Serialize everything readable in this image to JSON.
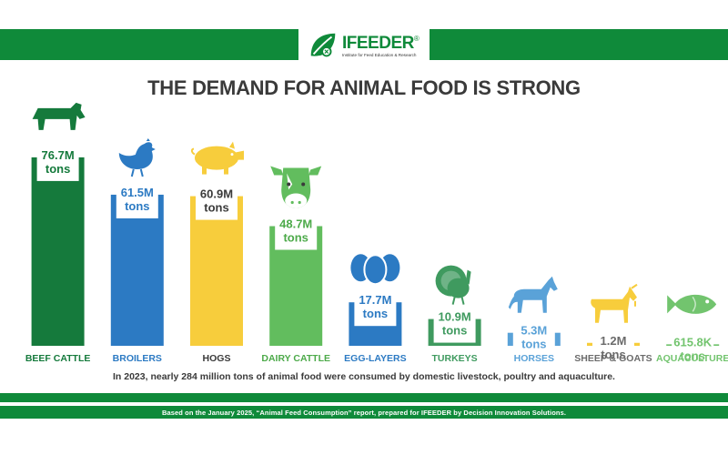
{
  "brand": {
    "name": "IFEEDER",
    "registered": "®",
    "tagline": "Institute for Feed Education & Research"
  },
  "title": "THE DEMAND FOR ANIMAL FOOD IS STRONG",
  "caption": "In 2023, nearly 284 million tons of animal food were consumed by domestic livestock, poultry and aquaculture.",
  "footer": "Based on the January 2025, “Animal Feed Consumption” report, prepared for IFEEDER by Decision Innovation Solutions.",
  "colors": {
    "brand_green": "#0f8a3a",
    "text_dark": "#3a3a3a"
  },
  "chart_data": {
    "type": "bar",
    "unit": "million tons",
    "categories": [
      "BEEF CATTLE",
      "BROILERS",
      "HOGS",
      "DAIRY CATTLE",
      "EGG-LAYERS",
      "TURKEYS",
      "HORSES",
      "SHEEP & GOATS",
      "AQUACULTURE"
    ],
    "values": [
      76.7,
      61.5,
      60.9,
      48.7,
      17.7,
      10.9,
      5.3,
      1.2,
      0.6158
    ],
    "value_labels": [
      "76.7M",
      "61.5M",
      "60.9M",
      "48.7M",
      "17.7M",
      "10.9M",
      "5.3M",
      "1.2M",
      "615.8K"
    ],
    "value_unit_label": "tons",
    "colors": [
      "#157a3c",
      "#2c7ac3",
      "#f7cd3c",
      "#62bd5e",
      "#2c7ac3",
      "#3f9a5f",
      "#5aa2d8",
      "#f7cd3c",
      "#72c46e"
    ],
    "label_colors": [
      "#157a3c",
      "#2c7ac3",
      "#3a3a3a",
      "#4daa4a",
      "#2c7ac3",
      "#3f9a5f",
      "#5aa2d8",
      "#6b6b6b",
      "#72c46e"
    ],
    "icons": [
      "cow-icon",
      "chicken-icon",
      "pig-icon",
      "dairy-cow-head-icon",
      "eggs-icon",
      "turkey-icon",
      "horse-icon",
      "goat-icon",
      "fish-icon"
    ]
  }
}
